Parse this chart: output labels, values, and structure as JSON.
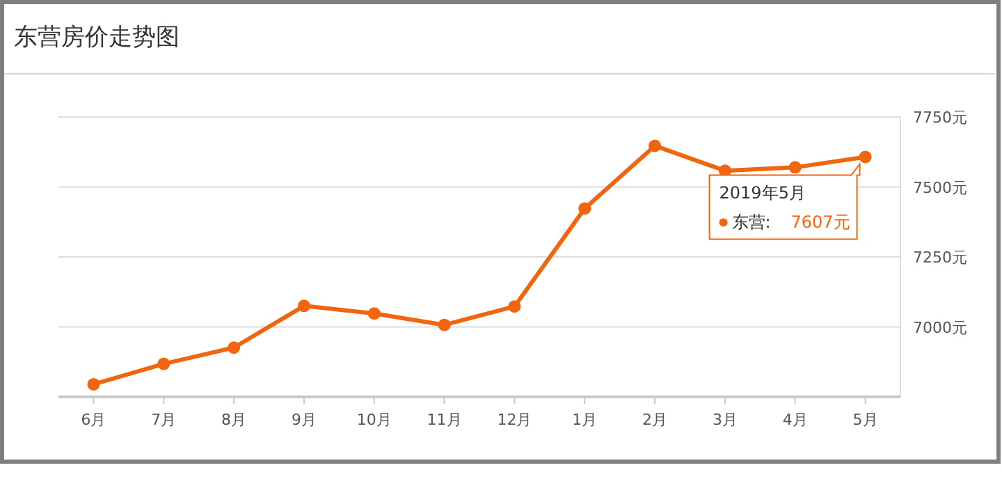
{
  "chart_data": {
    "type": "line",
    "title": "东营房价走势图",
    "categories": [
      "6月",
      "7月",
      "8月",
      "9月",
      "10月",
      "11月",
      "12月",
      "1月",
      "2月",
      "3月",
      "4月",
      "5月"
    ],
    "series": [
      {
        "name": "东营:",
        "color": "#f2650f",
        "values": [
          6795,
          6868,
          6926,
          7075,
          7048,
          7007,
          7073,
          7423,
          7647,
          7558,
          7570,
          7607
        ],
        "value_labels": [
          null,
          null,
          null,
          null,
          null,
          null,
          null,
          null,
          null,
          null,
          null,
          "7607元"
        ]
      }
    ],
    "ylim": [
      6750,
      7750
    ],
    "yticks": [
      {
        "value": 7000,
        "label": "7000元"
      },
      {
        "value": 7250,
        "label": "7250元"
      },
      {
        "value": 7500,
        "label": "7500元"
      },
      {
        "value": 7750,
        "label": "7750元"
      }
    ],
    "grid": "y",
    "legend": "right",
    "marker": "circle",
    "line_style": "solid",
    "annotations": [
      "2019年5月"
    ]
  }
}
